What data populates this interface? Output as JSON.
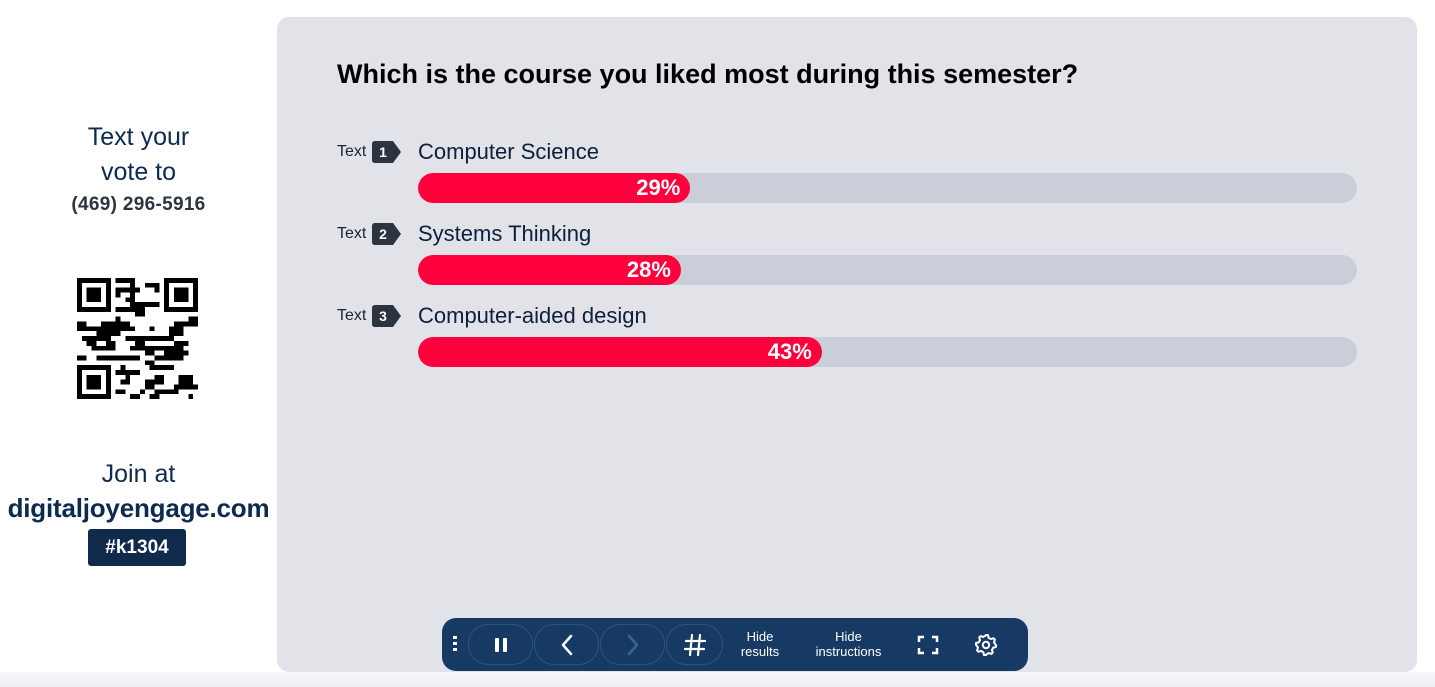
{
  "sidebar": {
    "text_line1": "Text your",
    "text_line2": "vote to",
    "phone": "(469) 296-5916",
    "join_label": "Join at",
    "site": "digitaljoyengage.com",
    "code": "#k1304"
  },
  "poll": {
    "question": "Which is the course you liked most during this semester?",
    "options": [
      {
        "prefix": "Text",
        "number": "1",
        "label": "Computer Science",
        "percent": 29,
        "percent_label": "29%"
      },
      {
        "prefix": "Text",
        "number": "2",
        "label": "Systems Thinking",
        "percent": 28,
        "percent_label": "28%"
      },
      {
        "prefix": "Text",
        "number": "3",
        "label": "Computer-aided design",
        "percent": 43,
        "percent_label": "43%"
      }
    ],
    "bar_color": "#ff003c",
    "track_color": "#c9ced8"
  },
  "toolbar": {
    "hide_results_line1": "Hide",
    "hide_results_line2": "results",
    "hide_instructions_line1": "Hide",
    "hide_instructions_line2": "instructions",
    "icons": [
      "drag-handle-icon",
      "pause-icon",
      "chevron-left-icon",
      "chevron-right-icon",
      "hash-icon",
      "fullscreen-icon",
      "gear-icon"
    ],
    "background": "#163a63"
  }
}
